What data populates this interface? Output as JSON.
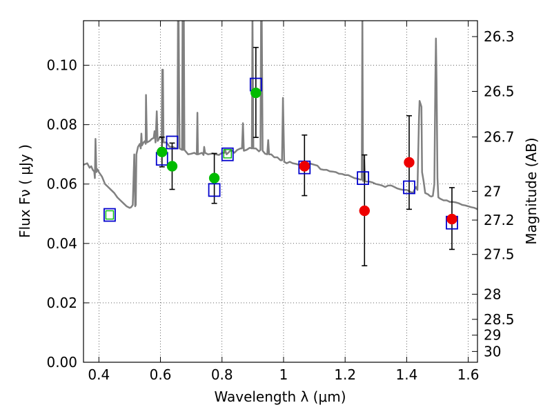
{
  "chart_data": {
    "type": "scatter",
    "xlabel": "Wavelength  λ (μm)",
    "ylabel": "Flux  Fν  ( μJy )",
    "ylabel_right": "Magnitude (AB)",
    "xlim": [
      0.35,
      1.63
    ],
    "ylim": [
      0.0,
      0.115
    ],
    "grid": true,
    "x_ticks": [
      0.4,
      0.6,
      0.8,
      1.0,
      1.2,
      1.4,
      1.6
    ],
    "x_tick_labels": [
      "0.4",
      "0.6",
      "0.8",
      "1",
      "1.2",
      "1.4",
      "1.6"
    ],
    "y_ticks": [
      0.0,
      0.02,
      0.04,
      0.06,
      0.08,
      0.1
    ],
    "y_tick_labels": [
      "0.00",
      "0.02",
      "0.04",
      "0.06",
      "0.08",
      "0.10"
    ],
    "right_ticks": [
      {
        "label": "26.3",
        "mag": 26.3
      },
      {
        "label": "26.5",
        "mag": 26.5
      },
      {
        "label": "26.7",
        "mag": 26.7
      },
      {
        "label": "27",
        "mag": 27.0
      },
      {
        "label": "27.2",
        "mag": 27.2
      },
      {
        "label": "27.5",
        "mag": 27.5
      },
      {
        "label": "28",
        "mag": 28.0
      },
      {
        "label": "28.5",
        "mag": 28.5
      },
      {
        "label": "29",
        "mag": 29.0
      },
      {
        "label": "30",
        "mag": 30.0
      }
    ],
    "series": [
      {
        "kind": "line",
        "color": "#808080",
        "points": [
          [
            0.35,
            0.0665
          ],
          [
            0.362,
            0.067
          ],
          [
            0.37,
            0.0655
          ],
          [
            0.375,
            0.066
          ],
          [
            0.38,
            0.0648
          ],
          [
            0.385,
            0.0642
          ],
          [
            0.387,
            0.062
          ],
          [
            0.389,
            0.0752
          ],
          [
            0.392,
            0.064
          ],
          [
            0.395,
            0.065
          ],
          [
            0.4,
            0.064
          ],
          [
            0.41,
            0.0625
          ],
          [
            0.42,
            0.06
          ],
          [
            0.43,
            0.059
          ],
          [
            0.44,
            0.058
          ],
          [
            0.45,
            0.057
          ],
          [
            0.46,
            0.0555
          ],
          [
            0.47,
            0.0545
          ],
          [
            0.48,
            0.0535
          ],
          [
            0.49,
            0.0525
          ],
          [
            0.5,
            0.052
          ],
          [
            0.505,
            0.0522
          ],
          [
            0.51,
            0.053
          ],
          [
            0.515,
            0.07
          ],
          [
            0.518,
            0.0525
          ],
          [
            0.52,
            0.053
          ],
          [
            0.522,
            0.07
          ],
          [
            0.527,
            0.0725
          ],
          [
            0.533,
            0.0735
          ],
          [
            0.536,
            0.072
          ],
          [
            0.538,
            0.077
          ],
          [
            0.54,
            0.073
          ],
          [
            0.545,
            0.074
          ],
          [
            0.55,
            0.0745
          ],
          [
            0.552,
            0.0735
          ],
          [
            0.553,
            0.09
          ],
          [
            0.556,
            0.074
          ],
          [
            0.565,
            0.0745
          ],
          [
            0.572,
            0.0752
          ],
          [
            0.578,
            0.0755
          ],
          [
            0.581,
            0.0778
          ],
          [
            0.584,
            0.074
          ],
          [
            0.588,
            0.0845
          ],
          [
            0.591,
            0.0745
          ],
          [
            0.6,
            0.076
          ],
          [
            0.604,
            0.0755
          ],
          [
            0.606,
            0.0985
          ],
          [
            0.608,
            0.0985
          ],
          [
            0.61,
            0.074
          ],
          [
            0.62,
            0.074
          ],
          [
            0.63,
            0.0725
          ],
          [
            0.64,
            0.0725
          ],
          [
            0.65,
            0.072
          ],
          [
            0.655,
            0.0722
          ],
          [
            0.657,
            0.118
          ],
          [
            0.659,
            0.118
          ],
          [
            0.662,
            0.072
          ],
          [
            0.67,
            0.0715
          ],
          [
            0.672,
            0.118
          ],
          [
            0.674,
            0.0715
          ],
          [
            0.676,
            0.118
          ],
          [
            0.678,
            0.0715
          ],
          [
            0.69,
            0.07
          ],
          [
            0.7,
            0.0702
          ],
          [
            0.71,
            0.0705
          ],
          [
            0.718,
            0.07
          ],
          [
            0.72,
            0.084
          ],
          [
            0.722,
            0.07
          ],
          [
            0.735,
            0.0705
          ],
          [
            0.74,
            0.0698
          ],
          [
            0.742,
            0.0725
          ],
          [
            0.745,
            0.0705
          ],
          [
            0.755,
            0.07
          ],
          [
            0.77,
            0.0703
          ],
          [
            0.78,
            0.07
          ],
          [
            0.79,
            0.0698
          ],
          [
            0.8,
            0.0705
          ],
          [
            0.808,
            0.0705
          ],
          [
            0.81,
            0.0715
          ],
          [
            0.815,
            0.07
          ],
          [
            0.82,
            0.0705
          ],
          [
            0.83,
            0.0715
          ],
          [
            0.84,
            0.0705
          ],
          [
            0.85,
            0.0715
          ],
          [
            0.86,
            0.072
          ],
          [
            0.865,
            0.072
          ],
          [
            0.868,
            0.0805
          ],
          [
            0.871,
            0.0712
          ],
          [
            0.88,
            0.0715
          ],
          [
            0.89,
            0.0722
          ],
          [
            0.897,
            0.072
          ],
          [
            0.899,
            0.118
          ],
          [
            0.902,
            0.072
          ],
          [
            0.91,
            0.072
          ],
          [
            0.92,
            0.071
          ],
          [
            0.925,
            0.0715
          ],
          [
            0.927,
            0.118
          ],
          [
            0.929,
            0.118
          ],
          [
            0.932,
            0.0712
          ],
          [
            0.94,
            0.0702
          ],
          [
            0.947,
            0.07
          ],
          [
            0.95,
            0.0748
          ],
          [
            0.953,
            0.07
          ],
          [
            0.96,
            0.07
          ],
          [
            0.97,
            0.069
          ],
          [
            0.98,
            0.069
          ],
          [
            0.99,
            0.068
          ],
          [
            0.995,
            0.068
          ],
          [
            0.998,
            0.089
          ],
          [
            1.002,
            0.0675
          ],
          [
            1.01,
            0.067
          ],
          [
            1.02,
            0.0675
          ],
          [
            1.03,
            0.067
          ],
          [
            1.04,
            0.0668
          ],
          [
            1.05,
            0.0665
          ],
          [
            1.06,
            0.0668
          ],
          [
            1.07,
            0.0668
          ],
          [
            1.08,
            0.067
          ],
          [
            1.09,
            0.0668
          ],
          [
            1.1,
            0.0665
          ],
          [
            1.11,
            0.0662
          ],
          [
            1.12,
            0.065
          ],
          [
            1.13,
            0.0648
          ],
          [
            1.14,
            0.0648
          ],
          [
            1.15,
            0.0643
          ],
          [
            1.16,
            0.0642
          ],
          [
            1.17,
            0.064
          ],
          [
            1.18,
            0.0635
          ],
          [
            1.19,
            0.0634
          ],
          [
            1.2,
            0.063
          ],
          [
            1.21,
            0.063
          ],
          [
            1.22,
            0.0625
          ],
          [
            1.23,
            0.062
          ],
          [
            1.24,
            0.0618
          ],
          [
            1.25,
            0.0615
          ],
          [
            1.254,
            0.0615
          ],
          [
            1.256,
            0.118
          ],
          [
            1.258,
            0.061
          ],
          [
            1.262,
            0.068
          ],
          [
            1.265,
            0.061
          ],
          [
            1.27,
            0.0608
          ],
          [
            1.28,
            0.0608
          ],
          [
            1.29,
            0.0605
          ],
          [
            1.3,
            0.06
          ],
          [
            1.31,
            0.0598
          ],
          [
            1.32,
            0.0595
          ],
          [
            1.33,
            0.059
          ],
          [
            1.34,
            0.0595
          ],
          [
            1.35,
            0.0595
          ],
          [
            1.36,
            0.059
          ],
          [
            1.37,
            0.0585
          ],
          [
            1.38,
            0.0582
          ],
          [
            1.39,
            0.058
          ],
          [
            1.4,
            0.058
          ],
          [
            1.41,
            0.0575
          ],
          [
            1.42,
            0.057
          ],
          [
            1.43,
            0.059
          ],
          [
            1.435,
            0.058
          ],
          [
            1.44,
            0.082
          ],
          [
            1.442,
            0.088
          ],
          [
            1.445,
            0.087
          ],
          [
            1.448,
            0.086
          ],
          [
            1.45,
            0.064
          ],
          [
            1.455,
            0.061
          ],
          [
            1.46,
            0.057
          ],
          [
            1.47,
            0.0565
          ],
          [
            1.475,
            0.056
          ],
          [
            1.48,
            0.0558
          ],
          [
            1.485,
            0.056
          ],
          [
            1.49,
            0.06
          ],
          [
            1.493,
            0.094
          ],
          [
            1.495,
            0.109
          ],
          [
            1.497,
            0.095
          ],
          [
            1.5,
            0.062
          ],
          [
            1.503,
            0.0555
          ],
          [
            1.51,
            0.055
          ],
          [
            1.52,
            0.0545
          ],
          [
            1.53,
            0.0545
          ],
          [
            1.54,
            0.054
          ],
          [
            1.55,
            0.054
          ],
          [
            1.56,
            0.0538
          ],
          [
            1.57,
            0.0535
          ],
          [
            1.58,
            0.053
          ],
          [
            1.59,
            0.0528
          ],
          [
            1.6,
            0.0525
          ],
          [
            1.61,
            0.0522
          ],
          [
            1.62,
            0.052
          ],
          [
            1.63,
            0.0515
          ]
        ]
      },
      {
        "kind": "model-squares",
        "color": "#0000cc",
        "points": [
          [
            0.435,
            0.0496
          ],
          [
            0.605,
            0.0685
          ],
          [
            0.638,
            0.074
          ],
          [
            0.775,
            0.058
          ],
          [
            0.818,
            0.07
          ],
          [
            0.91,
            0.0935
          ],
          [
            1.068,
            0.0656
          ],
          [
            1.258,
            0.062
          ],
          [
            1.408,
            0.0589
          ],
          [
            1.547,
            0.047
          ]
        ]
      },
      {
        "kind": "green-points",
        "color": "#00bb00",
        "points": [
          {
            "x": 0.605,
            "y": 0.0708,
            "err": [
              0.0658,
              0.0758
            ]
          },
          {
            "x": 0.638,
            "y": 0.066,
            "err": [
              0.0582,
              0.0738
            ]
          },
          {
            "x": 0.775,
            "y": 0.062,
            "err": [
              0.0535,
              0.0703
            ]
          },
          {
            "x": 0.91,
            "y": 0.0907,
            "err": [
              0.0757,
              0.106
            ]
          }
        ]
      },
      {
        "kind": "red-points",
        "color": "#ee0000",
        "points": [
          {
            "x": 1.068,
            "y": 0.066,
            "err": [
              0.0561,
              0.0765
            ]
          },
          {
            "x": 1.263,
            "y": 0.051,
            "err": [
              0.0325,
              0.0698
            ]
          },
          {
            "x": 1.408,
            "y": 0.0673,
            "err": [
              0.0515,
              0.083
            ]
          },
          {
            "x": 1.547,
            "y": 0.0482,
            "err": [
              0.038,
              0.0588
            ]
          }
        ]
      },
      {
        "kind": "green-squares",
        "color": "#00bb00",
        "points": [
          [
            0.435,
            0.0496
          ],
          [
            0.818,
            0.0702
          ]
        ]
      }
    ]
  }
}
